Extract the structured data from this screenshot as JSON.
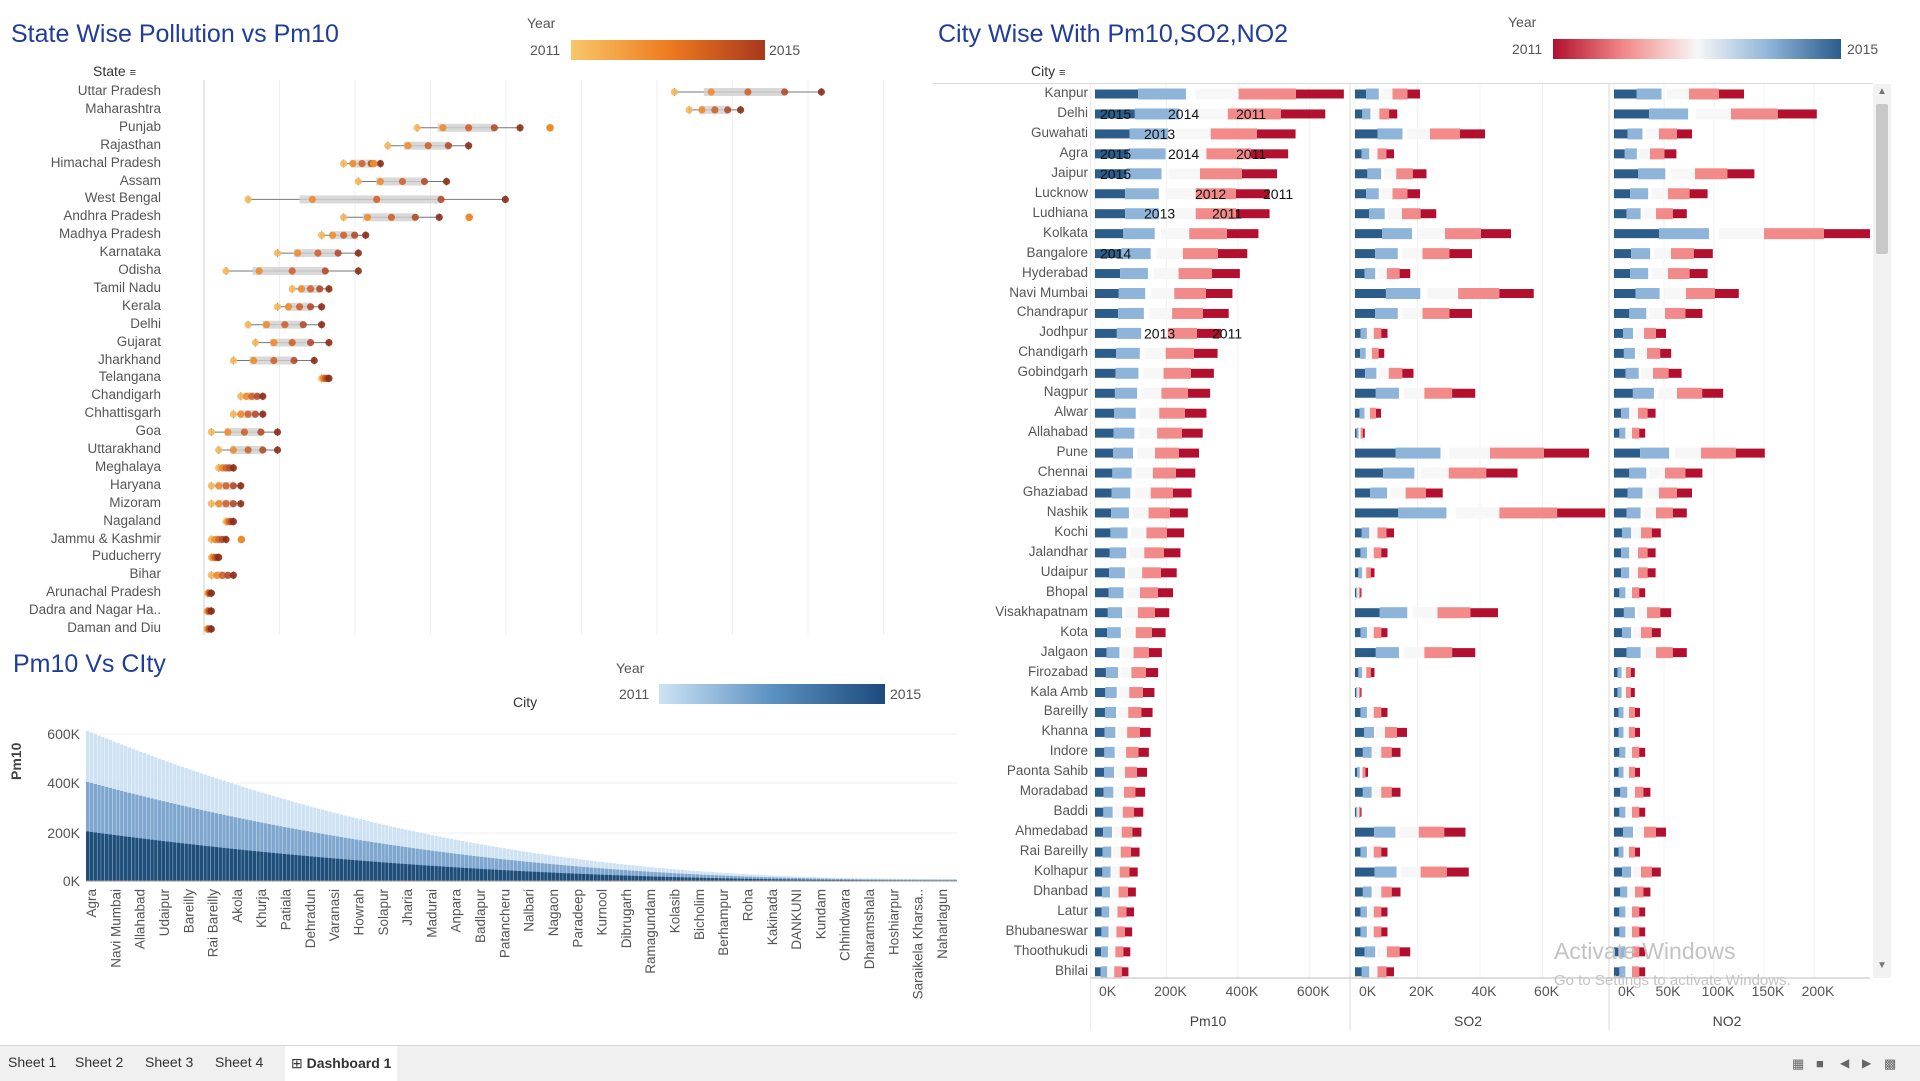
{
  "panel1": {
    "title": "State Wise Pollution vs Pm10",
    "field_label": "State",
    "legend": {
      "title": "Year",
      "min": "2011",
      "max": "2015"
    },
    "states": [
      "Uttar Pradesh",
      "Maharashtra",
      "Punjab",
      "Rajasthan",
      "Himachal Pradesh",
      "Assam",
      "West Bengal",
      "Andhra Pradesh",
      "Madhya Pradesh",
      "Karnataka",
      "Odisha",
      "Tamil Nadu",
      "Kerala",
      "Delhi",
      "Gujarat",
      "Jharkhand",
      "Telangana",
      "Chandigarh",
      "Chhattisgarh",
      "Goa",
      "Uttarakhand",
      "Meghalaya",
      "Haryana",
      "Mizoram",
      "Nagaland",
      "Jammu & Kashmir",
      "Puducherry",
      "Bihar",
      "Arunachal Pradesh",
      "Dadra and Nagar Ha..",
      "Daman and Diu"
    ]
  },
  "panel2": {
    "title": "Pm10 Vs CIty",
    "header": "City",
    "legend": {
      "title": "Year",
      "min": "2011",
      "max": "2015"
    },
    "y_axis_label": "Pm10",
    "y_ticks": [
      "600K",
      "400K",
      "200K",
      "0K"
    ],
    "cities": [
      "Agra",
      "Navi Mumbai",
      "Allahabad",
      "Udaipur",
      "Bareilly",
      "Rai Bareilly",
      "Akola",
      "Khurja",
      "Patiala",
      "Dehradun",
      "Varanasi",
      "Howrah",
      "Solapur",
      "Jharia",
      "Madurai",
      "Anpara",
      "Badlapur",
      "Patancheru",
      "Nalbari",
      "Nagaon",
      "Paradeep",
      "Kurnool",
      "Dibrugarh",
      "Ramagundam",
      "Kolasib",
      "Bicholim",
      "Berhampur",
      "Roha",
      "Kakinada",
      "DANKUNI",
      "Kundam",
      "Chhindwara",
      "Dharamshala",
      "Hoshiarpur",
      "Saraikela Kharsa..",
      "Naharlagun"
    ]
  },
  "panel3": {
    "title": "City Wise With Pm10,SO2,NO2",
    "field_label": "City",
    "legend": {
      "title": "Year",
      "min": "2011",
      "max": "2015"
    },
    "cities": [
      "Kanpur",
      "Delhi",
      "Guwahati",
      "Agra",
      "Jaipur",
      "Lucknow",
      "Ludhiana",
      "Kolkata",
      "Bangalore",
      "Hyderabad",
      "Navi Mumbai",
      "Chandrapur",
      "Jodhpur",
      "Chandigarh",
      "Gobindgarh",
      "Nagpur",
      "Alwar",
      "Allahabad",
      "Pune",
      "Chennai",
      "Ghaziabad",
      "Nashik",
      "Kochi",
      "Jalandhar",
      "Udaipur",
      "Bhopal",
      "Visakhapatnam",
      "Kota",
      "Jalgaon",
      "Firozabad",
      "Kala Amb",
      "Bareilly",
      "Khanna",
      "Indore",
      "Paonta Sahib",
      "Moradabad",
      "Baddi",
      "Ahmedabad",
      "Rai Bareilly",
      "Kolhapur",
      "Dhanbad",
      "Latur",
      "Bhubaneswar",
      "Thoothukudi",
      "Bhilai"
    ],
    "columns": [
      {
        "name": "Pm10",
        "ticks": [
          "0K",
          "200K",
          "400K",
          "600K"
        ]
      },
      {
        "name": "SO2",
        "ticks": [
          "0K",
          "20K",
          "40K",
          "60K"
        ]
      },
      {
        "name": "NO2",
        "ticks": [
          "0K",
          "50K",
          "100K",
          "150K",
          "200K"
        ]
      }
    ],
    "year_marks": [
      {
        "text": "2015",
        "row": 1
      },
      {
        "text": "2014",
        "row": 1
      },
      {
        "text": "2011",
        "row": 1
      },
      {
        "text": "2013",
        "row": 2
      },
      {
        "text": "2015",
        "row": 3
      },
      {
        "text": "2014",
        "row": 3
      },
      {
        "text": "2011",
        "row": 3
      },
      {
        "text": "2015",
        "row": 4
      },
      {
        "text": "2012",
        "row": 5
      },
      {
        "text": "2011",
        "row": 5
      },
      {
        "text": "2013",
        "row": 6
      },
      {
        "text": "2011",
        "row": 6
      },
      {
        "text": "2014",
        "row": 8
      },
      {
        "text": "2013",
        "row": 12
      },
      {
        "text": "2011",
        "row": 12
      }
    ]
  },
  "watermark": {
    "line1": "Activate Windows",
    "line2": "Go to Settings to activate Windows."
  },
  "tabs": [
    "Sheet 1",
    "Sheet 2",
    "Sheet 3",
    "Sheet 4",
    "Dashboard 1"
  ],
  "chart_data": [
    {
      "type": "scatter",
      "title": "State Wise Pollution vs Pm10",
      "categories": [
        "Uttar Pradesh",
        "Maharashtra",
        "Punjab",
        "Rajasthan",
        "Himachal Pradesh",
        "Assam",
        "West Bengal",
        "Andhra Pradesh",
        "Madhya Pradesh",
        "Karnataka",
        "Odisha",
        "Tamil Nadu",
        "Kerala",
        "Delhi",
        "Gujarat",
        "Jharkhand",
        "Telangana",
        "Chandigarh",
        "Chhattisgarh",
        "Goa",
        "Uttarakhand",
        "Meghalaya",
        "Haryana",
        "Mizoram",
        "Nagaland",
        "Jammu & Kashmir",
        "Puducherry",
        "Bihar",
        "Arunachal Pradesh",
        "Dadra and Nagar Ha..",
        "Daman and Diu"
      ],
      "colors": {
        "y2011": "#f6b85b",
        "y2015": "#8b2e18",
        "box": "#cfcfcf"
      },
      "ranges": [
        [
          0.64,
          0.84
        ],
        [
          0.66,
          0.73
        ],
        [
          0.29,
          0.43
        ],
        [
          0.25,
          0.36
        ],
        [
          0.19,
          0.24
        ],
        [
          0.21,
          0.33
        ],
        [
          0.06,
          0.41
        ],
        [
          0.19,
          0.32
        ],
        [
          0.16,
          0.22
        ],
        [
          0.1,
          0.21
        ],
        [
          0.03,
          0.21
        ],
        [
          0.12,
          0.17
        ],
        [
          0.1,
          0.16
        ],
        [
          0.06,
          0.16
        ],
        [
          0.07,
          0.17
        ],
        [
          0.04,
          0.15
        ],
        [
          0.16,
          0.17
        ],
        [
          0.05,
          0.08
        ],
        [
          0.04,
          0.08
        ],
        [
          0.01,
          0.1
        ],
        [
          0.02,
          0.1
        ],
        [
          0.02,
          0.04
        ],
        [
          0.01,
          0.05
        ],
        [
          0.01,
          0.05
        ],
        [
          0.03,
          0.04
        ],
        [
          0.01,
          0.03
        ],
        [
          0.01,
          0.02
        ],
        [
          0.01,
          0.04
        ],
        [
          0.005,
          0.01
        ],
        [
          0.004,
          0.01
        ],
        [
          0.004,
          0.01
        ]
      ],
      "outliers": [
        [],
        [],
        [
          0.43
        ],
        [],
        [
          0.19
        ],
        [],
        [],
        [
          0.32
        ],
        [],
        [],
        [],
        [],
        [],
        [],
        [],
        [],
        [],
        [],
        [],
        [],
        [],
        [],
        [],
        [],
        [],
        [
          0.01
        ],
        [],
        [],
        [],
        [],
        []
      ]
    },
    {
      "type": "bar",
      "title": "Pm10 Vs CIty",
      "ylabel": "Pm10",
      "ylim": [
        0,
        650000
      ],
      "colors": {
        "y2011": "#cfe2f3",
        "y2015": "#1f4e79"
      },
      "bar_count": 230,
      "values": [
        650000,
        420000,
        380000,
        330000,
        300000,
        260000,
        240000,
        220000,
        200000,
        185000,
        170000,
        160000,
        150000,
        140000,
        130000,
        120000,
        110000,
        100000,
        90000,
        85000,
        80000,
        75000,
        70000,
        65000,
        60000,
        55000,
        50000,
        45000,
        40000,
        35000,
        30000,
        26000,
        22000,
        18000,
        14000,
        10000
      ]
    },
    {
      "type": "bar",
      "title": "City Wise With Pm10,SO2,NO2",
      "series": [
        {
          "name": "Pm10",
          "values": [
            670000,
            620000,
            540000,
            520000,
            490000,
            470000,
            470000,
            440000,
            410000,
            390000,
            370000,
            360000,
            340000,
            330000,
            320000,
            310000,
            300000,
            290000,
            280000,
            270000,
            260000,
            250000,
            240000,
            230000,
            220000,
            210000,
            200000,
            190000,
            180000,
            170000,
            160000,
            155000,
            150000,
            145000,
            140000,
            135000,
            130000,
            125000,
            120000,
            115000,
            110000,
            105000,
            100000,
            95000,
            90000
          ]
        },
        {
          "name": "SO2",
          "values": [
            20000,
            13000,
            40000,
            12000,
            22000,
            20000,
            25000,
            48000,
            36000,
            17000,
            55000,
            36000,
            10000,
            9000,
            18000,
            37000,
            8000,
            3000,
            72000,
            50000,
            27000,
            77000,
            12000,
            10000,
            6000,
            2000,
            44000,
            10000,
            37000,
            6000,
            2000,
            10000,
            16000,
            14000,
            4000,
            14000,
            2000,
            34000,
            10000,
            35000,
            14000,
            10000,
            10000,
            17000,
            12000
          ]
        },
        {
          "name": "NO2",
          "values": [
            125000,
            195000,
            75000,
            60000,
            135000,
            90000,
            70000,
            250000,
            95000,
            90000,
            120000,
            85000,
            50000,
            55000,
            65000,
            105000,
            40000,
            30000,
            145000,
            85000,
            75000,
            70000,
            45000,
            40000,
            40000,
            30000,
            55000,
            45000,
            70000,
            20000,
            20000,
            25000,
            25000,
            30000,
            25000,
            35000,
            30000,
            50000,
            25000,
            45000,
            35000,
            30000,
            30000,
            30000,
            30000
          ]
        }
      ],
      "colors": {
        "y2011": "#b2102e",
        "mid": "#f7f7f7",
        "y2015": "#2b5c8a"
      }
    }
  ]
}
